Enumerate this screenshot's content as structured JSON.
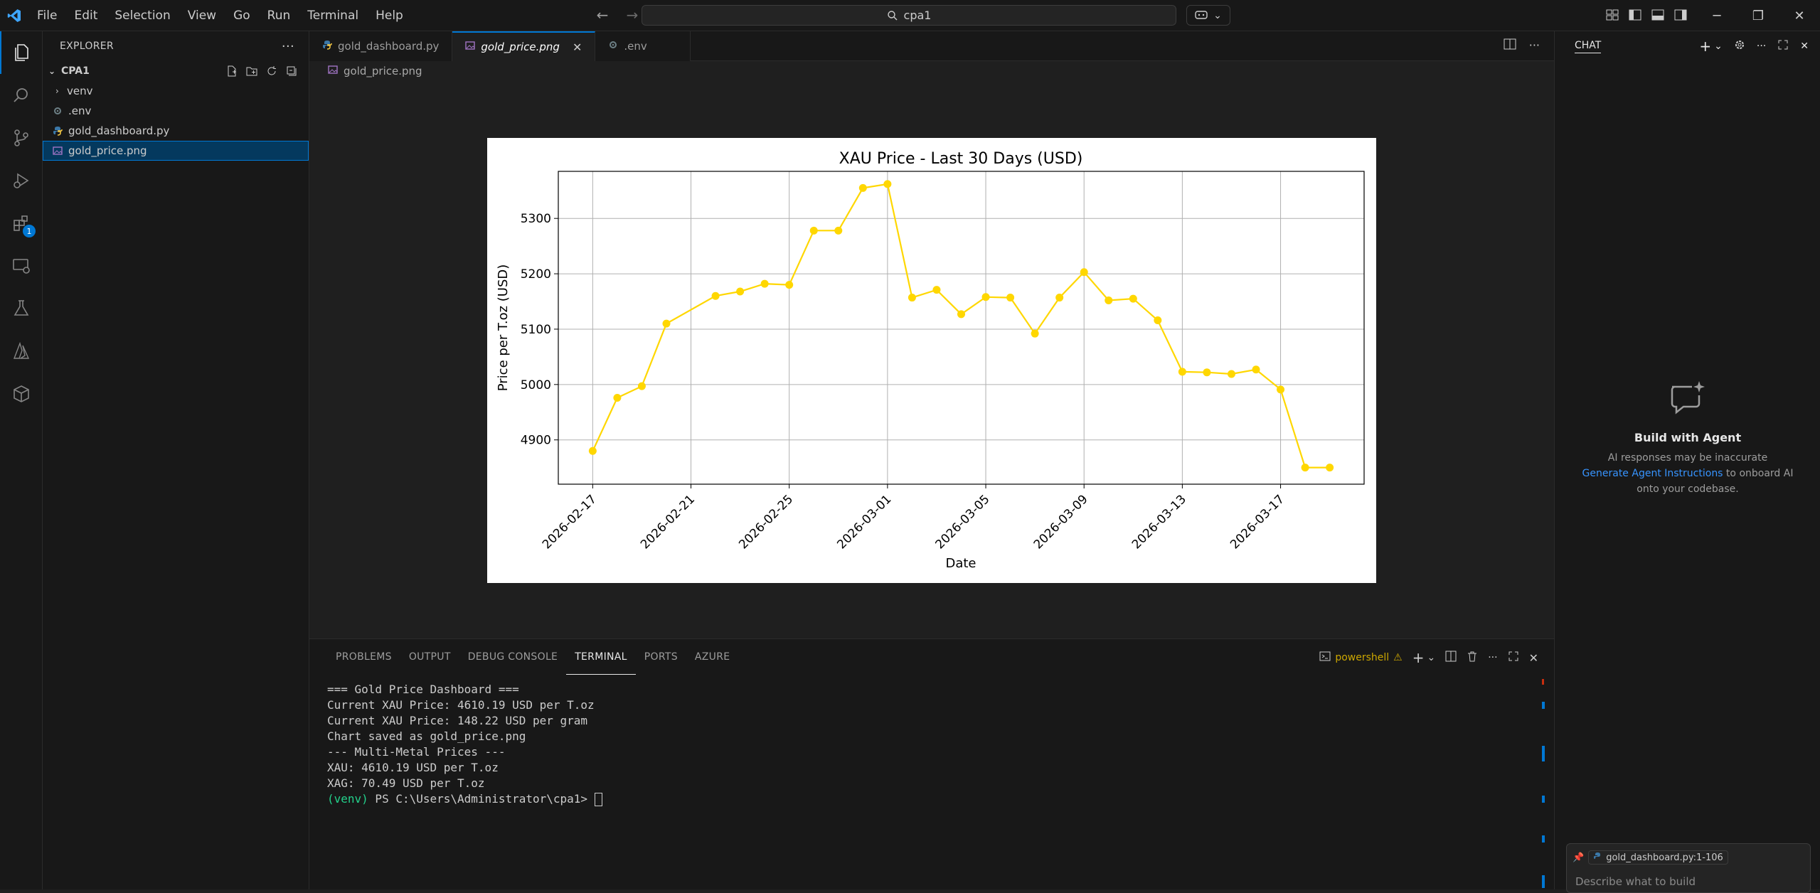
{
  "menu": [
    "File",
    "Edit",
    "Selection",
    "View",
    "Go",
    "Run",
    "Terminal",
    "Help"
  ],
  "search": {
    "label": "cpa1"
  },
  "explorer": {
    "title": "EXPLORER",
    "folder": "CPA1",
    "items": [
      {
        "label": "venv"
      },
      {
        "label": ".env"
      },
      {
        "label": "gold_dashboard.py"
      },
      {
        "label": "gold_price.png"
      }
    ]
  },
  "tabs": [
    {
      "label": "gold_dashboard.py"
    },
    {
      "label": "gold_price.png"
    },
    {
      "label": ".env"
    }
  ],
  "breadcrumb": "gold_price.png",
  "activity_badge": "1",
  "chart_data": {
    "type": "line",
    "title": "XAU Price - Last 30 Days (USD)",
    "xlabel": "Date",
    "ylabel": "Price per T.oz (USD)",
    "xticks": [
      "2026-02-17",
      "2026-02-21",
      "2026-02-25",
      "2026-03-01",
      "2026-03-05",
      "2026-03-09",
      "2026-03-13",
      "2026-03-17"
    ],
    "yticks": [
      4900,
      5000,
      5100,
      5200,
      5300
    ],
    "ylim": [
      4820,
      5385
    ],
    "color": "#ffd700",
    "grid": true,
    "x": [
      "2026-02-17",
      "2026-02-18",
      "2026-02-19",
      "2026-02-20",
      "2026-02-22",
      "2026-02-23",
      "2026-02-24",
      "2026-02-25",
      "2026-02-26",
      "2026-02-27",
      "2026-02-28",
      "2026-03-01",
      "2026-03-02",
      "2026-03-03",
      "2026-03-04",
      "2026-03-05",
      "2026-03-06",
      "2026-03-07",
      "2026-03-08",
      "2026-03-09",
      "2026-03-10",
      "2026-03-11",
      "2026-03-12",
      "2026-03-13",
      "2026-03-14",
      "2026-03-15",
      "2026-03-16",
      "2026-03-17",
      "2026-03-18",
      "2026-03-19"
    ],
    "values": [
      4880,
      4976,
      4997,
      5110,
      5160,
      5168,
      5182,
      5180,
      5278,
      5278,
      5355,
      5362,
      5157,
      5171,
      5127,
      5158,
      5157,
      5092,
      5157,
      5203,
      5152,
      5155,
      5116,
      5023,
      5022,
      5019,
      5027,
      4991,
      4850,
      4850
    ]
  },
  "panel": {
    "tabs": [
      "PROBLEMS",
      "OUTPUT",
      "DEBUG CONSOLE",
      "TERMINAL",
      "PORTS",
      "AZURE"
    ],
    "shell": "powershell"
  },
  "terminal": {
    "lines": [
      "=== Gold Price Dashboard ===",
      "",
      "Current XAU Price: 4610.19 USD per T.oz",
      "Current XAU Price: 148.22 USD per gram",
      "",
      "Chart saved as gold_price.png",
      "",
      "--- Multi-Metal Prices ---",
      "XAU: 4610.19 USD per T.oz",
      "XAG: 70.49 USD per T.oz"
    ],
    "prompt_venv": "(venv)",
    "prompt": " PS C:\\Users\\Administrator\\cpa1> "
  },
  "chat": {
    "title": "CHAT",
    "heading": "Build with Agent",
    "line1": "AI responses may be inaccurate",
    "link": "Generate Agent Instructions",
    "line2": " to onboard AI",
    "line3": "onto your codebase.",
    "context_chip": "gold_dashboard.py:1-106",
    "input_placeholder": "Describe what to build"
  }
}
